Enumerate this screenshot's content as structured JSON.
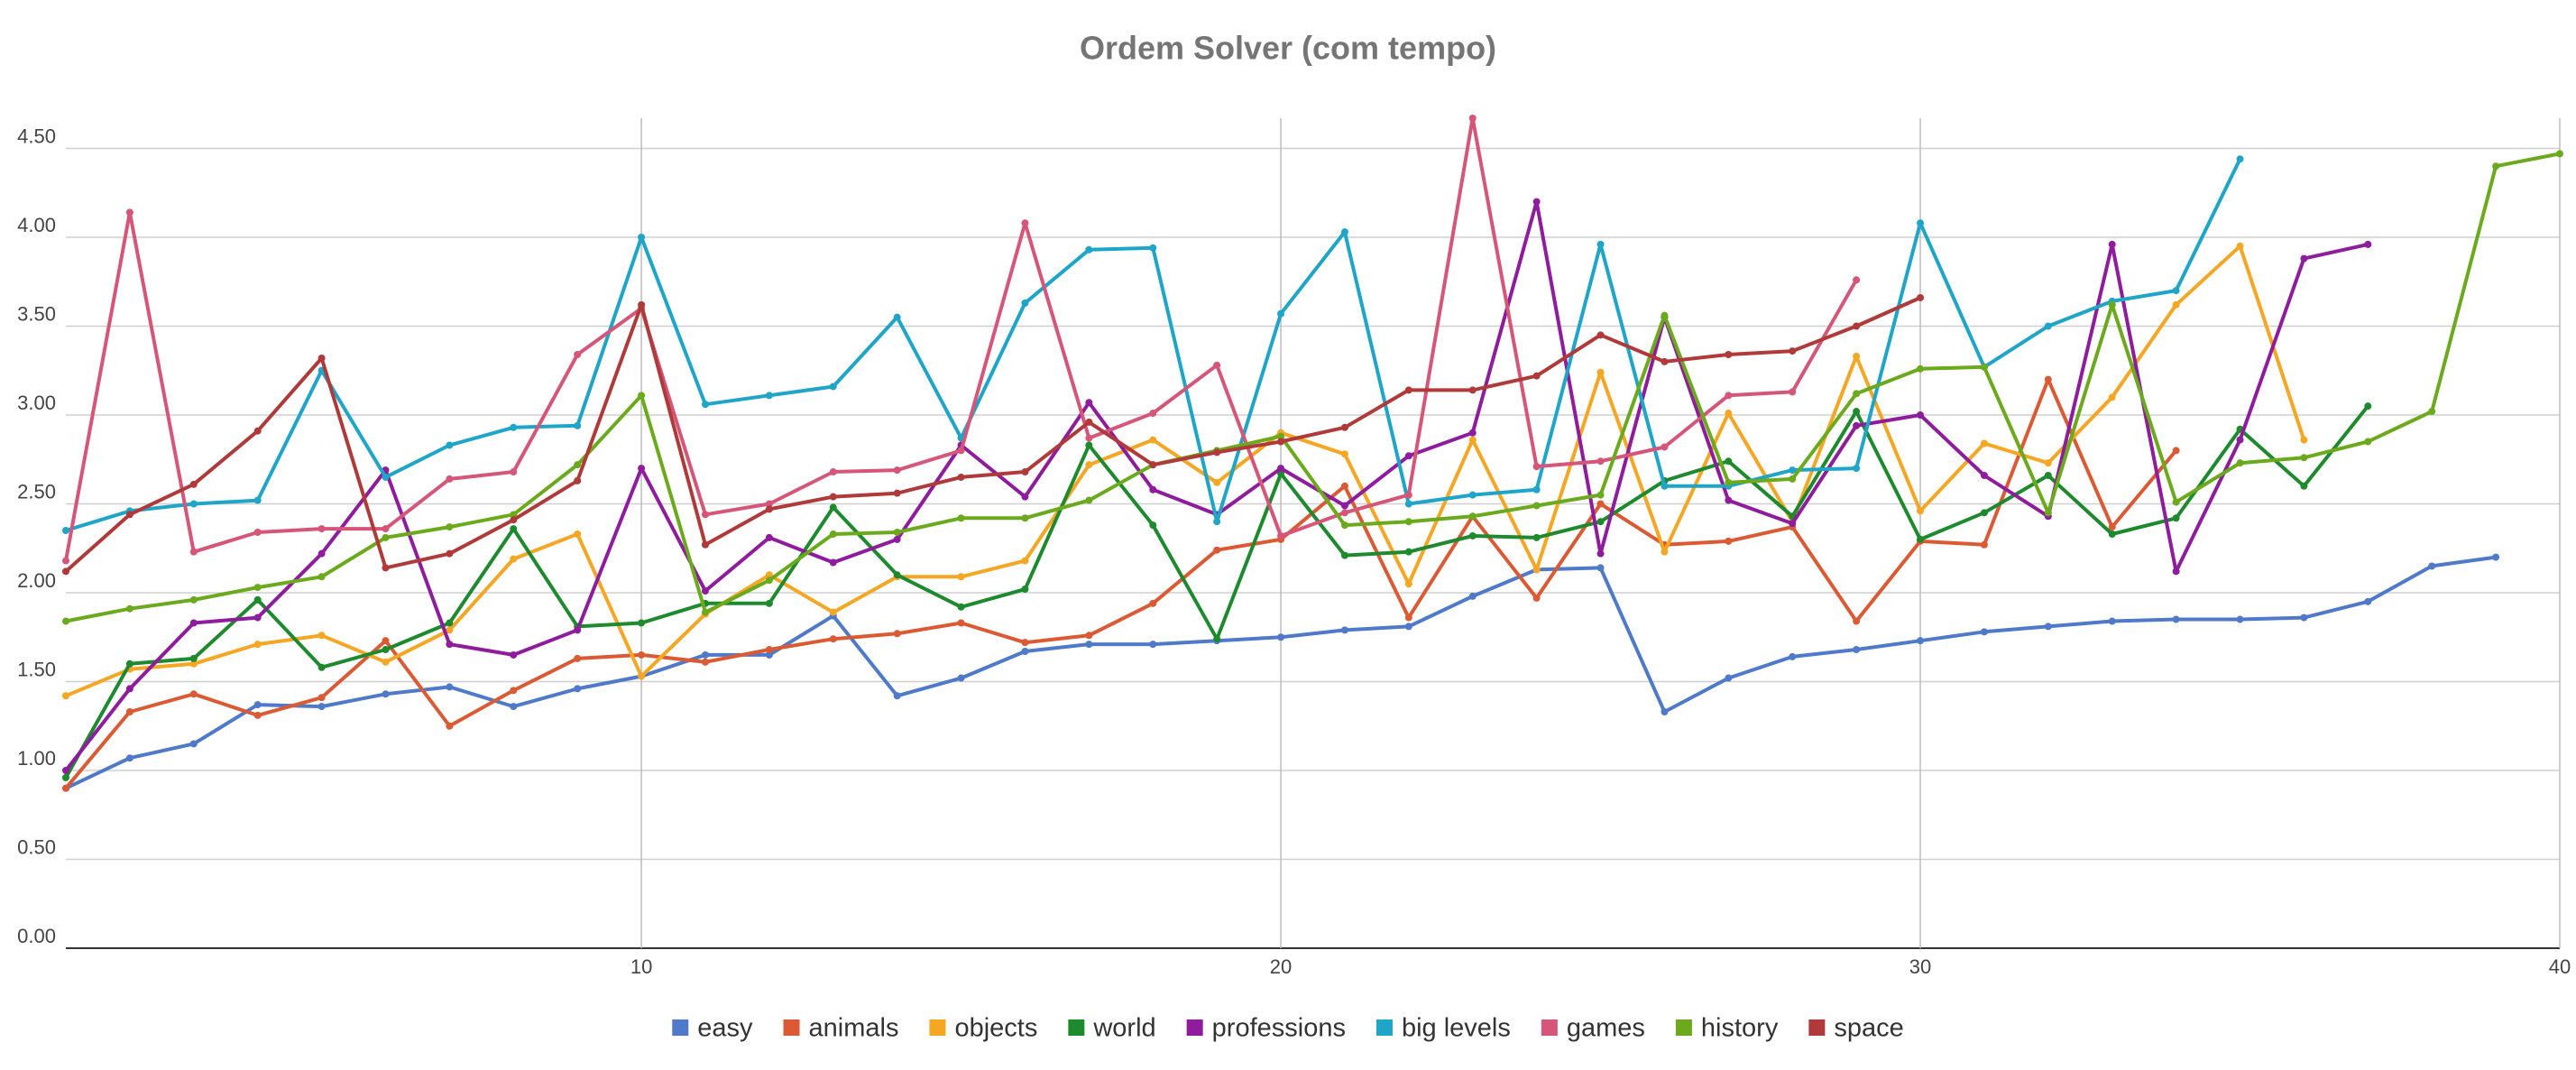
{
  "chart_data": {
    "type": "line",
    "title": "Ordem Solver (com tempo)",
    "x": [
      1,
      2,
      3,
      4,
      5,
      6,
      7,
      8,
      9,
      10,
      11,
      12,
      13,
      14,
      15,
      16,
      17,
      18,
      19,
      20,
      21,
      22,
      23,
      24,
      25,
      26,
      27,
      28,
      29,
      30,
      31,
      32,
      33,
      34,
      35,
      36,
      37,
      38,
      39,
      40
    ],
    "xlim": [
      1,
      40
    ],
    "xticks": [
      10,
      20,
      30,
      40
    ],
    "ylim": [
      0,
      4.67
    ],
    "yticks": [
      {
        "value": 0,
        "label": "0.00"
      },
      {
        "value": 0.5,
        "label": "0.50"
      },
      {
        "value": 1,
        "label": "1.00"
      },
      {
        "value": 1.5,
        "label": "1.50"
      },
      {
        "value": 2,
        "label": "2.00"
      },
      {
        "value": 2.5,
        "label": "2.50"
      },
      {
        "value": 3,
        "label": "3.00"
      },
      {
        "value": 3.5,
        "label": "3.50"
      },
      {
        "value": 4,
        "label": "4.00"
      },
      {
        "value": 4.5,
        "label": "4.50"
      }
    ],
    "grid": true,
    "legend": "bottom",
    "series": [
      {
        "name": "easy",
        "color": "#4f79c9",
        "values": [
          0.9,
          1.07,
          1.15,
          1.37,
          1.36,
          1.43,
          1.47,
          1.36,
          1.46,
          1.53,
          1.65,
          1.65,
          1.87,
          1.42,
          1.52,
          1.67,
          1.71,
          1.71,
          1.73,
          1.75,
          1.79,
          1.81,
          1.98,
          2.13,
          2.14,
          1.33,
          1.52,
          1.64,
          1.68,
          1.73,
          1.78,
          1.81,
          1.84,
          1.85,
          1.85,
          1.86,
          1.95,
          2.15,
          2.2,
          null
        ]
      },
      {
        "name": "animals",
        "color": "#db5a33",
        "values": [
          0.9,
          1.33,
          1.43,
          1.31,
          1.41,
          1.73,
          1.25,
          1.45,
          1.63,
          1.65,
          1.61,
          1.68,
          1.74,
          1.77,
          1.83,
          1.72,
          1.76,
          1.94,
          2.24,
          2.3,
          2.6,
          1.86,
          2.43,
          1.97,
          2.5,
          2.27,
          2.29,
          2.37,
          1.84,
          2.29,
          2.27,
          3.2,
          2.37,
          2.8,
          null,
          null,
          null,
          null,
          null,
          null
        ]
      },
      {
        "name": "objects",
        "color": "#f5a623",
        "values": [
          1.42,
          1.57,
          1.6,
          1.71,
          1.76,
          1.61,
          1.79,
          2.19,
          2.33,
          1.53,
          1.88,
          2.1,
          1.89,
          2.09,
          2.09,
          2.18,
          2.72,
          2.86,
          2.62,
          2.9,
          2.78,
          2.05,
          2.86,
          2.13,
          3.24,
          2.23,
          3.01,
          2.4,
          3.33,
          2.46,
          2.84,
          2.73,
          3.1,
          3.62,
          3.95,
          2.86,
          null,
          null,
          null,
          null
        ]
      },
      {
        "name": "world",
        "color": "#1e8a2e",
        "values": [
          0.96,
          1.6,
          1.63,
          1.96,
          1.58,
          1.68,
          1.83,
          2.36,
          1.81,
          1.83,
          1.94,
          1.94,
          2.48,
          2.1,
          1.92,
          2.02,
          2.83,
          2.38,
          1.74,
          2.67,
          2.21,
          2.23,
          2.32,
          2.31,
          2.4,
          2.63,
          2.74,
          2.43,
          3.02,
          2.3,
          2.45,
          2.66,
          2.33,
          2.42,
          2.92,
          2.6,
          3.05,
          null,
          null,
          null
        ]
      },
      {
        "name": "professions",
        "color": "#8e1c9c",
        "values": [
          1.0,
          1.46,
          1.83,
          1.86,
          2.22,
          2.69,
          1.71,
          1.65,
          1.79,
          2.7,
          2.01,
          2.31,
          2.17,
          2.3,
          2.83,
          2.54,
          3.07,
          2.58,
          2.44,
          2.7,
          2.49,
          2.77,
          2.9,
          4.2,
          2.22,
          3.55,
          2.52,
          2.39,
          2.94,
          3.0,
          2.66,
          2.43,
          3.96,
          2.12,
          2.86,
          3.88,
          3.96,
          null,
          null,
          null
        ]
      },
      {
        "name": "big levels",
        "color": "#1ea5c8",
        "values": [
          2.35,
          2.46,
          2.5,
          2.52,
          3.25,
          2.65,
          2.83,
          2.93,
          2.94,
          4.0,
          3.06,
          3.11,
          3.16,
          3.55,
          2.87,
          3.63,
          3.93,
          3.94,
          2.4,
          3.57,
          4.03,
          2.5,
          2.55,
          2.58,
          3.96,
          2.6,
          2.6,
          2.69,
          2.7,
          4.08,
          3.27,
          3.5,
          3.64,
          3.7,
          4.44,
          null,
          null,
          null,
          null,
          null
        ]
      },
      {
        "name": "games",
        "color": "#d6567a",
        "values": [
          2.18,
          4.14,
          2.23,
          2.34,
          2.36,
          2.36,
          2.64,
          2.68,
          3.34,
          3.6,
          2.44,
          2.5,
          2.68,
          2.69,
          2.8,
          4.08,
          2.87,
          3.01,
          3.28,
          2.32,
          2.45,
          2.55,
          4.67,
          2.71,
          2.74,
          2.82,
          3.11,
          3.13,
          3.76,
          null,
          null,
          null,
          null,
          null,
          null,
          null,
          null,
          null,
          null,
          null
        ]
      },
      {
        "name": "history",
        "color": "#6aaa1c",
        "values": [
          1.84,
          1.91,
          1.96,
          2.03,
          2.09,
          2.31,
          2.37,
          2.44,
          2.72,
          3.11,
          1.89,
          2.07,
          2.33,
          2.34,
          2.42,
          2.42,
          2.52,
          2.72,
          2.8,
          2.88,
          2.38,
          2.4,
          2.43,
          2.49,
          2.55,
          3.56,
          2.62,
          2.64,
          3.12,
          3.26,
          3.27,
          2.45,
          3.62,
          2.51,
          2.73,
          2.76,
          2.85,
          3.02,
          4.4,
          4.47
        ]
      },
      {
        "name": "space",
        "color": "#b03a3a",
        "values": [
          2.12,
          2.44,
          2.61,
          2.91,
          3.32,
          2.14,
          2.22,
          2.41,
          2.63,
          3.62,
          2.27,
          2.47,
          2.54,
          2.56,
          2.65,
          2.68,
          2.96,
          2.72,
          2.79,
          2.85,
          2.93,
          3.14,
          3.14,
          3.22,
          3.45,
          3.3,
          3.34,
          3.36,
          3.5,
          3.66,
          null,
          null,
          null,
          null,
          null,
          null,
          null,
          null,
          null,
          null
        ]
      }
    ]
  }
}
